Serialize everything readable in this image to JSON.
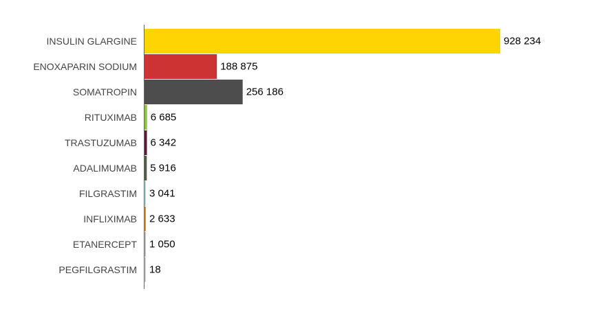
{
  "chart_data": {
    "type": "bar",
    "orientation": "horizontal",
    "categories": [
      "INSULIN GLARGINE",
      "ENOXAPARIN SODIUM",
      "SOMATROPIN",
      "RITUXIMAB",
      "TRASTUZUMAB",
      "ADALIMUMAB",
      "FILGRASTIM",
      "INFLIXIMAB",
      "ETANERCEPT",
      "PEGFILGRASTIM"
    ],
    "values": [
      928234,
      188875,
      256186,
      6685,
      6342,
      5916,
      3041,
      2633,
      1050,
      18
    ],
    "value_labels": [
      "928 234",
      "188 875",
      "256 186",
      "6 685",
      "6 342",
      "5 916",
      "3 041",
      "2 633",
      "1 050",
      "18"
    ],
    "colors": [
      "#FFD500",
      "#CC3333",
      "#4D4D4D",
      "#8CC63F",
      "#5A1A3A",
      "#4A5E40",
      "#A9D4E0",
      "#E08A2A",
      "#BBBBBB",
      "#CCCCCC"
    ],
    "title": "",
    "xlabel": "",
    "ylabel": "",
    "xlim": [
      0,
      928234
    ],
    "grid": false,
    "legend": "none"
  }
}
